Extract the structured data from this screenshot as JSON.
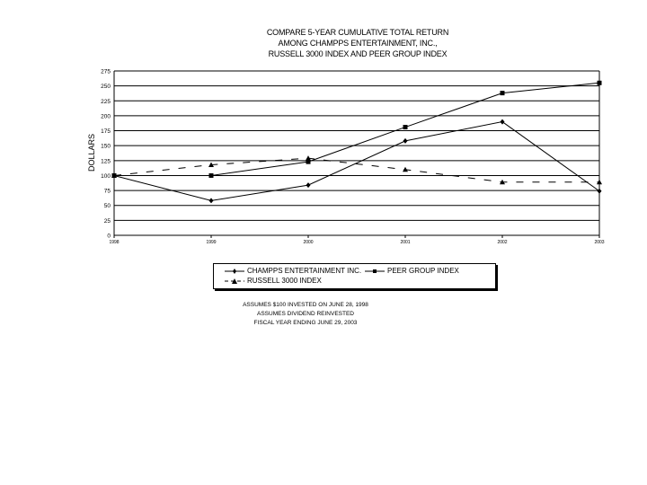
{
  "chart_data": {
    "type": "line",
    "title": [
      "COMPARE 5-YEAR CUMULATIVE TOTAL RETURN",
      "AMONG CHAMPPS ENTERTAINMENT, INC.,",
      "RUSSELL 3000 INDEX AND PEER GROUP INDEX"
    ],
    "ylabel": "DOLLARS",
    "xlabel": "",
    "categories": [
      "1998",
      "1999",
      "2000",
      "2001",
      "2002",
      "2003"
    ],
    "ylim": [
      0,
      275
    ],
    "yticks": [
      0,
      25,
      50,
      75,
      100,
      125,
      150,
      175,
      200,
      225,
      250,
      275
    ],
    "grid": true,
    "legend_placement": "bottom",
    "series": [
      {
        "name": "CHAMPPS ENTERTAINMENT INC.",
        "marker": "diamond",
        "dash": "solid",
        "values": [
          100,
          58,
          84,
          158,
          190,
          74
        ]
      },
      {
        "name": "PEER GROUP INDEX",
        "marker": "square",
        "dash": "solid",
        "values": [
          100,
          100,
          123,
          181,
          238,
          255
        ]
      },
      {
        "name": "RUSSELL 3000 INDEX",
        "marker": "triangle",
        "dash": "dashed",
        "values": [
          100,
          118,
          129,
          110,
          89,
          89
        ]
      }
    ],
    "notes": [
      "ASSUMES $100 INVESTED ON JUNE 28, 1998",
      "ASSUMES DIVIDEND REINVESTED",
      "FISCAL YEAR ENDING JUNE 29, 2003"
    ]
  }
}
